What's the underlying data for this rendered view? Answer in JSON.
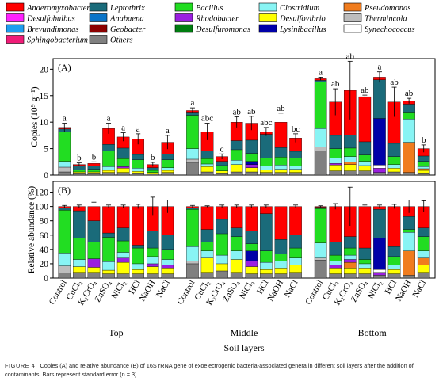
{
  "legend": [
    {
      "name": "Anaeromyxobacter",
      "color": "#ff0000"
    },
    {
      "name": "Leptothrix",
      "color": "#1a6b7a"
    },
    {
      "name": "Bacillus",
      "color": "#22dd22"
    },
    {
      "name": "Clostridium",
      "color": "#88f4f4"
    },
    {
      "name": "Pseudomonas",
      "color": "#f07c1e"
    },
    {
      "name": "Desulfobulbus",
      "color": "#ff22ff"
    },
    {
      "name": "Anabaena",
      "color": "#0a74c8"
    },
    {
      "name": "Rhodobacter",
      "color": "#9b1fe0"
    },
    {
      "name": "Desulfovibrio",
      "color": "#ffff00"
    },
    {
      "name": "Thermincola",
      "color": "#bdbdbd"
    },
    {
      "name": "Brevundimonas",
      "color": "#1d9ef0"
    },
    {
      "name": "Geobacter",
      "color": "#8b0000"
    },
    {
      "name": "Desulfuromonas",
      "color": "#007d10"
    },
    {
      "name": "Lysinibacillus",
      "color": "#0000a8"
    },
    {
      "name": "Synechococcus",
      "color": "#ffffff"
    },
    {
      "name": "Sphingobacterium",
      "color": "#f01c78"
    },
    {
      "name": "Others",
      "color": "#808080"
    }
  ],
  "categories": [
    "Control",
    "CuCl₂",
    "K₂CrO₄",
    "ZnSO₄",
    "NiCl₂",
    "HCl",
    "NaOH",
    "NaCl"
  ],
  "groups": [
    "Top",
    "Middle",
    "Bottom"
  ],
  "xlabel": "Soil layers",
  "chart_data": [
    {
      "type": "bar",
      "panel": "(A)",
      "ylabel": "Copies (10⁹ g⁻¹)",
      "ylim": [
        0,
        22
      ],
      "yticks": [
        0,
        5,
        10,
        15,
        20
      ],
      "stacked": true,
      "bars": [
        {
          "group": "Top",
          "category": "Control",
          "total": 9.0,
          "error": 0.8,
          "letter": "a",
          "segments": {
            "Others": 0.6,
            "Thermincola": 0.9,
            "Clostridium": 1.1,
            "Bacillus": 5.6,
            "Leptothrix": 0.5,
            "Anaeromyxobacter": 0.3
          }
        },
        {
          "group": "Top",
          "category": "CuCl₂",
          "total": 2.0,
          "error": 0.3,
          "letter": "b",
          "segments": {
            "Others": 0.4,
            "Desulfovibrio": 0.2,
            "Bacillus": 0.4,
            "Leptothrix": 0.8,
            "Anaeromyxobacter": 0.2
          }
        },
        {
          "group": "Top",
          "category": "K₂CrO₄",
          "total": 2.2,
          "error": 0.3,
          "letter": "b",
          "segments": {
            "Others": 0.4,
            "Desulfovibrio": 0.2,
            "Bacillus": 0.5,
            "Leptothrix": 0.6,
            "Anaeromyxobacter": 0.5
          }
        },
        {
          "group": "Top",
          "category": "ZnSO₄",
          "total": 8.8,
          "error": 1.0,
          "letter": "a",
          "segments": {
            "Others": 0.5,
            "Desulfovibrio": 0.4,
            "Clostridium": 0.7,
            "Bacillus": 3.0,
            "Leptothrix": 1.2,
            "Anaeromyxobacter": 3.0
          }
        },
        {
          "group": "Top",
          "category": "NiCl₂",
          "total": 7.2,
          "error": 0.8,
          "letter": "a",
          "segments": {
            "Others": 0.5,
            "Desulfovibrio": 0.8,
            "Rhodobacter": 0.3,
            "Bacillus": 1.5,
            "Leptothrix": 2.0,
            "Anaeromyxobacter": 2.1
          }
        },
        {
          "group": "Top",
          "category": "HCl",
          "total": 6.8,
          "error": 1.0,
          "letter": "a",
          "segments": {
            "Others": 0.4,
            "Desulfovibrio": 0.3,
            "Clostridium": 0.6,
            "Bacillus": 1.6,
            "Leptothrix": 1.0,
            "Anaeromyxobacter": 2.9
          }
        },
        {
          "group": "Top",
          "category": "NaOH",
          "total": 2.0,
          "error": 0.4,
          "letter": "b",
          "segments": {
            "Others": 0.3,
            "Desulfovibrio": 0.2,
            "Bacillus": 0.4,
            "Leptothrix": 0.5,
            "Anaeromyxobacter": 0.6
          }
        },
        {
          "group": "Top",
          "category": "NaCl",
          "total": 6.2,
          "error": 1.3,
          "letter": "a",
          "segments": {
            "Others": 0.5,
            "Desulfovibrio": 0.4,
            "Clostridium": 0.5,
            "Bacillus": 1.5,
            "Leptothrix": 1.1,
            "Anaeromyxobacter": 2.2
          }
        },
        {
          "group": "Middle",
          "category": "Control",
          "total": 12.2,
          "error": 0.5,
          "letter": "a",
          "segments": {
            "Others": 2.3,
            "Thermincola": 0.7,
            "Clostridium": 2.0,
            "Bacillus": 6.3,
            "Leptothrix": 0.6,
            "Anaeromyxobacter": 0.3
          }
        },
        {
          "group": "Middle",
          "category": "CuCl₂",
          "total": 8.2,
          "error": 1.6,
          "letter": "abc",
          "segments": {
            "Others": 0.6,
            "Desulfovibrio": 1.0,
            "Clostridium": 0.5,
            "Bacillus": 1.0,
            "Leptothrix": 1.5,
            "Anaeromyxobacter": 3.6
          }
        },
        {
          "group": "Middle",
          "category": "K₂CrO₄",
          "total": 3.5,
          "error": 0.5,
          "letter": "c",
          "segments": {
            "Others": 0.4,
            "Desulfovibrio": 0.4,
            "Bacillus": 1.0,
            "Leptothrix": 0.8,
            "Anaeromyxobacter": 0.9
          }
        },
        {
          "group": "Middle",
          "category": "ZnSO₄",
          "total": 10.0,
          "error": 1.0,
          "letter": "ab",
          "segments": {
            "Others": 0.6,
            "Desulfovibrio": 1.4,
            "Clostridium": 0.8,
            "Bacillus": 2.0,
            "Leptothrix": 1.7,
            "Anaeromyxobacter": 3.5
          }
        },
        {
          "group": "Middle",
          "category": "NiCl₂",
          "total": 9.8,
          "error": 1.3,
          "letter": "ab",
          "segments": {
            "Others": 0.6,
            "Desulfovibrio": 0.8,
            "Rhodobacter": 0.6,
            "Lysinibacillus": 0.6,
            "Bacillus": 1.5,
            "Leptothrix": 2.5,
            "Anaeromyxobacter": 3.2
          }
        },
        {
          "group": "Middle",
          "category": "HCl",
          "total": 8.2,
          "error": 0.8,
          "letter": "abc",
          "segments": {
            "Others": 0.5,
            "Desulfovibrio": 0.5,
            "Clostridium": 0.7,
            "Bacillus": 1.5,
            "Leptothrix": 4.5,
            "Anaeromyxobacter": 0.5
          }
        },
        {
          "group": "Middle",
          "category": "NaOH",
          "total": 10.0,
          "error": 1.7,
          "letter": "ab",
          "segments": {
            "Others": 0.5,
            "Desulfovibrio": 0.6,
            "Clostridium": 0.8,
            "Bacillus": 1.5,
            "Leptothrix": 1.8,
            "Anaeromyxobacter": 4.8
          }
        },
        {
          "group": "Middle",
          "category": "NaCl",
          "total": 7.0,
          "error": 0.8,
          "letter": "bc",
          "segments": {
            "Others": 0.5,
            "Desulfovibrio": 0.6,
            "Clostridium": 0.6,
            "Bacillus": 1.5,
            "Leptothrix": 1.3,
            "Anaeromyxobacter": 2.5
          }
        },
        {
          "group": "Bottom",
          "category": "Control",
          "total": 18.2,
          "error": 0.3,
          "letter": "a",
          "segments": {
            "Others": 4.6,
            "Thermincola": 0.7,
            "Clostridium": 3.5,
            "Bacillus": 8.8,
            "Leptothrix": 0.3,
            "Anaeromyxobacter": 0.3
          }
        },
        {
          "group": "Bottom",
          "category": "CuCl₂",
          "total": 13.8,
          "error": 2.5,
          "letter": "ab",
          "segments": {
            "Others": 0.8,
            "Desulfovibrio": 1.1,
            "Rhodobacter": 0.3,
            "Clostridium": 1.0,
            "Bacillus": 1.8,
            "Leptothrix": 2.5,
            "Anaeromyxobacter": 6.3
          }
        },
        {
          "group": "Bottom",
          "category": "K₂CrO₄",
          "total": 16.0,
          "error": 5.5,
          "letter": "ab",
          "segments": {
            "Others": 0.8,
            "Desulfovibrio": 1.2,
            "Pseudomonas": 0.5,
            "Clostridium": 1.0,
            "Bacillus": 1.6,
            "Leptothrix": 2.5,
            "Anaeromyxobacter": 8.4
          }
        },
        {
          "group": "Bottom",
          "category": "ZnSO₄",
          "total": 14.8,
          "error": 0.3,
          "letter": "ab",
          "segments": {
            "Others": 0.8,
            "Desulfovibrio": 1.0,
            "Clostridium": 0.8,
            "Bacillus": 1.2,
            "Leptothrix": 2.5,
            "Anaeromyxobacter": 8.5
          }
        },
        {
          "group": "Bottom",
          "category": "NiCl₂",
          "total": 18.5,
          "error": 1.0,
          "letter": "a",
          "segments": {
            "Others": 0.5,
            "Rhodobacter": 0.8,
            "Synechococcus": 0.6,
            "Lysinibacillus": 8.8,
            "Leptothrix": 7.3,
            "Anaeromyxobacter": 0.5
          }
        },
        {
          "group": "Bottom",
          "category": "HCl",
          "total": 13.8,
          "error": 2.8,
          "letter": "ab",
          "segments": {
            "Others": 0.6,
            "Desulfovibrio": 0.7,
            "Clostridium": 0.7,
            "Bacillus": 1.5,
            "Leptothrix": 2.5,
            "Anaeromyxobacter": 7.8
          }
        },
        {
          "group": "Bottom",
          "category": "NaOH",
          "total": 14.0,
          "error": 0.5,
          "letter": "ab",
          "segments": {
            "Others": 0.5,
            "Pseudomonas": 5.7,
            "Clostridium": 4.4,
            "Bacillus": 1.3,
            "Leptothrix": 1.5,
            "Anaeromyxobacter": 0.6
          }
        },
        {
          "group": "Bottom",
          "category": "NaCl",
          "total": 5.0,
          "error": 0.7,
          "letter": "b",
          "segments": {
            "Others": 0.4,
            "Desulfovibrio": 0.5,
            "Pseudomonas": 0.3,
            "Clostridium": 0.4,
            "Bacillus": 1.0,
            "Leptothrix": 1.0,
            "Anaeromyxobacter": 1.4
          }
        }
      ]
    },
    {
      "type": "bar",
      "panel": "(B)",
      "ylabel": "Relative abundance (%)",
      "ylim": [
        0,
        135
      ],
      "yticks": [
        0,
        20,
        40,
        60,
        80,
        100,
        120
      ],
      "stacked": true,
      "bars": [
        {
          "group": "Top",
          "category": "Control",
          "error": 1.5,
          "segments": {
            "Others": 7,
            "Thermincola": 10,
            "Clostridium": 18,
            "Bacillus": 60,
            "Leptothrix": 3,
            "Anaeromyxobacter": 2
          }
        },
        {
          "group": "Top",
          "category": "CuCl₂",
          "error": 2,
          "segments": {
            "Others": 8,
            "Desulfovibrio": 8,
            "Clostridium": 10,
            "Bacillus": 30,
            "Leptothrix": 38,
            "Anaeromyxobacter": 6
          }
        },
        {
          "group": "Top",
          "category": "K₂CrO₄",
          "error": 6,
          "segments": {
            "Others": 8,
            "Desulfovibrio": 7,
            "Rhodobacter": 12,
            "Bacillus": 23,
            "Leptothrix": 30,
            "Anaeromyxobacter": 20
          }
        },
        {
          "group": "Top",
          "category": "ZnSO₄",
          "error": 2,
          "segments": {
            "Others": 6,
            "Desulfovibrio": 5,
            "Clostridium": 12,
            "Bacillus": 34,
            "Leptothrix": 6,
            "Anaeromyxobacter": 37
          }
        },
        {
          "group": "Top",
          "category": "NiCl₂",
          "error": 2,
          "segments": {
            "Others": 6,
            "Desulfovibrio": 16,
            "Rhodobacter": 6,
            "Clostridium": 8,
            "Bacillus": 16,
            "Leptothrix": 18,
            "Anaeromyxobacter": 30
          }
        },
        {
          "group": "Top",
          "category": "HCl",
          "error": 3,
          "segments": {
            "Others": 6,
            "Desulfovibrio": 6,
            "Clostridium": 8,
            "Bacillus": 22,
            "Leptothrix": 4,
            "Anaeromyxobacter": 54
          }
        },
        {
          "group": "Top",
          "category": "NaOH",
          "error": 13,
          "segments": {
            "Others": 6,
            "Desulfovibrio": 10,
            "Rhodobacter": 4,
            "Clostridium": 10,
            "Bacillus": 12,
            "Leptothrix": 24,
            "Anaeromyxobacter": 34
          }
        },
        {
          "group": "Top",
          "category": "NaCl",
          "error": 9,
          "segments": {
            "Others": 6,
            "Desulfovibrio": 8,
            "Rhodobacter": 4,
            "Clostridium": 8,
            "Bacillus": 14,
            "Leptothrix": 20,
            "Anaeromyxobacter": 40
          }
        },
        {
          "group": "Middle",
          "category": "Control",
          "error": 1.5,
          "segments": {
            "Others": 20,
            "Thermincola": 4,
            "Clostridium": 20,
            "Bacillus": 52,
            "Leptothrix": 2,
            "Anaeromyxobacter": 2
          }
        },
        {
          "group": "Middle",
          "category": "CuCl₂",
          "error": 1,
          "segments": {
            "Others": 8,
            "Desulfovibrio": 20,
            "Clostridium": 10,
            "Bacillus": 12,
            "Leptothrix": 18,
            "Anaeromyxobacter": 32
          }
        },
        {
          "group": "Middle",
          "category": "K₂CrO₄",
          "error": 2,
          "segments": {
            "Others": 10,
            "Desulfovibrio": 10,
            "Clostridium": 12,
            "Bacillus": 30,
            "Leptothrix": 20,
            "Anaeromyxobacter": 18
          }
        },
        {
          "group": "Middle",
          "category": "ZnSO₄",
          "error": 2,
          "segments": {
            "Others": 8,
            "Desulfovibrio": 18,
            "Clostridium": 12,
            "Bacillus": 20,
            "Leptothrix": 12,
            "Anaeromyxobacter": 30
          }
        },
        {
          "group": "Middle",
          "category": "NiCl₂",
          "error": 2,
          "segments": {
            "Others": 6,
            "Desulfovibrio": 10,
            "Rhodobacter": 8,
            "Lysinibacillus": 14,
            "Bacillus": 10,
            "Leptothrix": 18,
            "Anaeromyxobacter": 34
          }
        },
        {
          "group": "Middle",
          "category": "HCl",
          "error": 2,
          "segments": {
            "Others": 6,
            "Desulfovibrio": 6,
            "Clostridium": 10,
            "Bacillus": 16,
            "Leptothrix": 52,
            "Anaeromyxobacter": 10
          }
        },
        {
          "group": "Middle",
          "category": "NaOH",
          "error": 9,
          "segments": {
            "Others": 6,
            "Desulfovibrio": 8,
            "Clostridium": 10,
            "Bacillus": 10,
            "Leptothrix": 20,
            "Anaeromyxobacter": 46
          }
        },
        {
          "group": "Middle",
          "category": "NaCl",
          "error": 2,
          "segments": {
            "Others": 8,
            "Desulfovibrio": 10,
            "Clostridium": 10,
            "Bacillus": 14,
            "Leptothrix": 18,
            "Anaeromyxobacter": 40
          }
        },
        {
          "group": "Bottom",
          "category": "Control",
          "error": 1,
          "segments": {
            "Others": 25,
            "Thermincola": 3,
            "Clostridium": 21,
            "Bacillus": 48,
            "Leptothrix": 2,
            "Anaeromyxobacter": 1
          }
        },
        {
          "group": "Bottom",
          "category": "CuCl₂",
          "error": 4,
          "segments": {
            "Others": 6,
            "Desulfovibrio": 8,
            "Rhodobacter": 4,
            "Clostridium": 6,
            "Bacillus": 8,
            "Leptothrix": 18,
            "Anaeromyxobacter": 50
          }
        },
        {
          "group": "Bottom",
          "category": "K₂CrO₄",
          "error": 27,
          "segments": {
            "Others": 6,
            "Desulfovibrio": 8,
            "Pseudomonas": 8,
            "Rhodobacter": 4,
            "Clostridium": 6,
            "Bacillus": 10,
            "Leptothrix": 16,
            "Anaeromyxobacter": 42
          }
        },
        {
          "group": "Bottom",
          "category": "ZnSO₄",
          "error": 2,
          "segments": {
            "Others": 6,
            "Desulfovibrio": 8,
            "Clostridium": 6,
            "Bacillus": 6,
            "Leptothrix": 16,
            "Anaeromyxobacter": 58
          }
        },
        {
          "group": "Bottom",
          "category": "NiCl₂",
          "error": 2,
          "segments": {
            "Others": 4,
            "Rhodobacter": 4,
            "Synechococcus": 4,
            "Lysinibacillus": 44,
            "Leptothrix": 40,
            "Anaeromyxobacter": 4
          }
        },
        {
          "group": "Bottom",
          "category": "HCl",
          "error": 3,
          "segments": {
            "Others": 6,
            "Desulfovibrio": 6,
            "Clostridium": 6,
            "Bacillus": 12,
            "Leptothrix": 14,
            "Anaeromyxobacter": 56
          }
        },
        {
          "group": "Bottom",
          "category": "NaOH",
          "error": 9,
          "segments": {
            "Others": 4,
            "Pseudomonas": 34,
            "Clostridium": 26,
            "Bacillus": 4,
            "Leptothrix": 18,
            "Anaeromyxobacter": 14
          }
        },
        {
          "group": "Bottom",
          "category": "NaCl",
          "error": 8,
          "segments": {
            "Others": 8,
            "Desulfovibrio": 10,
            "Pseudomonas": 10,
            "Clostridium": 10,
            "Bacillus": 20,
            "Leptothrix": 12,
            "Anaeromyxobacter": 30
          }
        }
      ]
    }
  ],
  "caption": {
    "figure_label": "FIGURE 4",
    "text": "Copies (A) and relative abundance (B) of 16S rRNA gene of exoelectrogenic bacteria-associated genera in different soil layers after the addition of contaminants. Bars represent standard error (n = 3)."
  }
}
